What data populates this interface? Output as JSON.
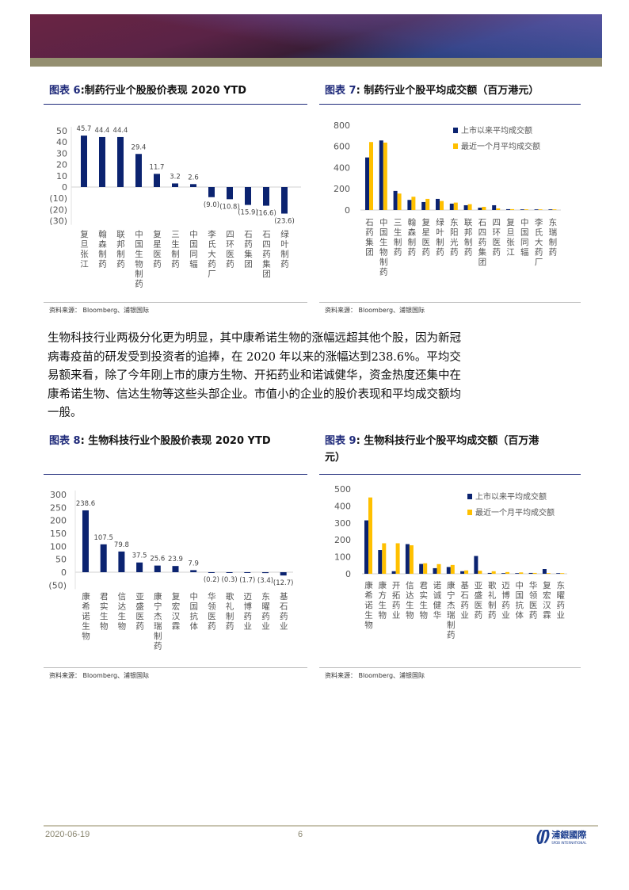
{
  "figures": {
    "fig6": {
      "label": "图表 6",
      "title": ":制药行业个股股价表现 2020 YTD",
      "source": "资料来源： Bloomberg、浦银国际"
    },
    "fig7": {
      "label": "图表 7",
      "title": ": 制药行业个股平均成交额（百万港元）",
      "source": "资料来源： Bloomberg、浦银国际"
    },
    "fig8": {
      "label": "图表 8",
      "title": ": 生物科技行业个股股价表现 2020 YTD",
      "source": "资料来源： Bloomberg、浦银国际"
    },
    "fig9": {
      "label": "图表 9",
      "title": ": 生物科技行业个股平均成交额（百万港",
      "title2": "元）",
      "source": "资料来源： Bloomberg、浦银国际"
    }
  },
  "paragraph": "生物科技行业两极分化更为明显，其中康希诺生物的涨幅远超其他个股，因为新冠病毒疫苗的研发受到投资者的追捧，在 2020 年以来的涨幅达到238.6%。平均交易额来看，除了今年刚上市的康方生物、开拓药业和诺诚健华，资金热度还集中在康希诺生物、信达生物等这些头部企业。市值小的企业的股价表现和平均成交额均一般。",
  "footer": {
    "date": "2020-06-19",
    "page": "6",
    "logo": "浦銀國際",
    "logo_en": "SPDB INTERNATIONAL"
  },
  "colors": {
    "navy": "#0b2370",
    "gold": "#ffc000"
  },
  "chart_data": [
    {
      "type": "bar",
      "title": "制药行业个股股价表现 2020 YTD",
      "ylim": [
        -30,
        50
      ],
      "yticks": [
        "50",
        "40",
        "30",
        "20",
        "10",
        "0",
        "(10)",
        "(20)",
        "(30)"
      ],
      "ytick_values": [
        50,
        40,
        30,
        20,
        10,
        0,
        -10,
        -20,
        -30
      ],
      "categories": [
        "复旦张江",
        "翰森制药",
        "联邦制药",
        "中国生物制药",
        "复星医药",
        "三生制药",
        "中国同辐",
        "李氏大药厂",
        "四环医药",
        "石药集团",
        "石四药集团",
        "绿叶制药"
      ],
      "values": [
        45.7,
        44.4,
        44.4,
        29.4,
        11.7,
        3.2,
        2.6,
        -9.0,
        -10.8,
        -15.9,
        -16.6,
        -23.6
      ],
      "value_labels": [
        "45.7",
        "44.4",
        "44.4",
        "29.4",
        "11.7",
        "3.2",
        "2.6",
        "(9.0)",
        "(10.8)",
        "(15.9)",
        "(16.6)",
        "(23.6)"
      ]
    },
    {
      "type": "bar",
      "title": "制药行业个股平均成交额（百万港元）",
      "ylim": [
        0,
        800
      ],
      "yticks": [
        "800",
        "600",
        "400",
        "200",
        "0"
      ],
      "ytick_values": [
        800,
        600,
        400,
        200,
        0
      ],
      "categories": [
        "石药集团",
        "中国生物制药",
        "三生制药",
        "翰森制药",
        "复星医药",
        "绿叶制药",
        "东阳光药",
        "联邦制药",
        "石四药集团",
        "四环医药",
        "复旦张江",
        "中国同辐",
        "李氏大药厂",
        "东瑞制药"
      ],
      "series": [
        {
          "name": "上市以来平均成交额",
          "values": [
            495,
            655,
            180,
            95,
            75,
            105,
            60,
            45,
            22,
            45,
            8,
            5,
            1,
            1
          ]
        },
        {
          "name": "最近一个月平均成交额",
          "values": [
            640,
            635,
            155,
            125,
            105,
            85,
            70,
            55,
            30,
            15,
            8,
            5,
            1,
            1
          ]
        }
      ],
      "legend": "top-right"
    },
    {
      "type": "bar",
      "title": "生物科技行业个股股价表现 2020 YTD",
      "ylim": [
        -50,
        300
      ],
      "yticks": [
        "300",
        "250",
        "200",
        "150",
        "100",
        "50",
        "0",
        "(50)"
      ],
      "ytick_values": [
        300,
        250,
        200,
        150,
        100,
        50,
        0,
        -50
      ],
      "categories": [
        "康希诺生物",
        "君实生物",
        "信达生物",
        "亚盛医药",
        "康宁杰瑞制药",
        "复宏汉霖",
        "中国抗体",
        "华领医药",
        "歌礼制药",
        "迈博药业",
        "东曜药业",
        "基石药业"
      ],
      "values": [
        238.6,
        107.5,
        79.8,
        37.5,
        25.6,
        23.9,
        7.9,
        -0.2,
        -0.3,
        -1.7,
        -3.4,
        -12.7
      ],
      "value_labels": [
        "238.6",
        "107.5",
        "79.8",
        "37.5",
        "25.6",
        "23.9",
        "7.9",
        "(0.2)",
        "(0.3)",
        "(1.7)",
        "(3.4)",
        "(12.7)"
      ]
    },
    {
      "type": "bar",
      "title": "生物科技行业个股平均成交额（百万港元）",
      "ylim": [
        0,
        500
      ],
      "yticks": [
        "500",
        "400",
        "300",
        "200",
        "100",
        "0"
      ],
      "ytick_values": [
        500,
        400,
        300,
        200,
        100,
        0
      ],
      "categories": [
        "康希诺生物",
        "康方生物",
        "开拓药业",
        "信达生物",
        "君实生物",
        "诺诚健华",
        "康宁杰瑞制药",
        "基石药业",
        "亚盛医药",
        "歌礼制药",
        "迈博药业",
        "中国抗体",
        "华领医药",
        "复宏汉霖",
        "东曜药业"
      ],
      "series": [
        {
          "name": "上市以来平均成交额",
          "values": [
            315,
            140,
            15,
            175,
            58,
            33,
            40,
            15,
            105,
            5,
            1,
            1,
            5,
            28,
            1
          ]
        },
        {
          "name": "最近一个月平均成交额",
          "values": [
            450,
            180,
            180,
            168,
            62,
            57,
            52,
            20,
            18,
            15,
            10,
            8,
            5,
            4,
            1
          ]
        }
      ],
      "legend": "top-right"
    }
  ]
}
